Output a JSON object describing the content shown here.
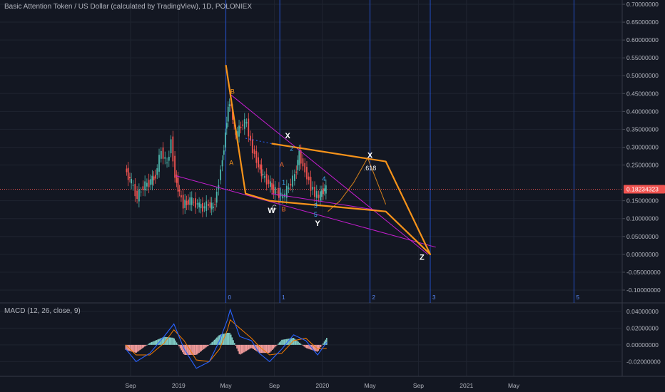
{
  "header": {
    "title": "Basic Attention Token / US Dollar (calculated by TradingView), 1D, POLONIEX"
  },
  "macd_header": {
    "label": "MACD (12, 26, close, 9)"
  },
  "colors": {
    "background": "#131722",
    "grid": "#1f2430",
    "candle_up": "#4db6ac",
    "candle_down": "#ef5350",
    "fib_time_line": "#2962ff",
    "pattern_line": "#f7931a",
    "trend_line": "#c71ed1",
    "price_line": "#ef5350",
    "macd_line": "#2962ff",
    "signal_line": "#f57c00",
    "hist_up": "#80cbc4",
    "hist_down": "#ef9a9a"
  },
  "chart_data": [
    {
      "type": "line",
      "title": "Basic Attention Token / US Dollar (calculated by TradingView), 1D, POLONIEX",
      "ylim": [
        -0.12,
        0.7
      ],
      "yticks": [
        "0.70000000",
        "0.65000000",
        "0.60000000",
        "0.55000000",
        "0.50000000",
        "0.45000000",
        "0.40000000",
        "0.35000000",
        "0.30000000",
        "0.25000000",
        "0.15000000",
        "0.10000000",
        "0.05000000",
        "0.00000000",
        "-0.05000000",
        "-0.10000000"
      ],
      "ytick_values": [
        0.7,
        0.65,
        0.6,
        0.55,
        0.5,
        0.45,
        0.4,
        0.35,
        0.3,
        0.25,
        0.15,
        0.1,
        0.05,
        0.0,
        -0.05,
        -0.1
      ],
      "current_price": 0.18234323,
      "current_price_label": "0.18234323",
      "xticks": [
        "Sep",
        "2019",
        "May",
        "Sep",
        "2020",
        "May",
        "Sep",
        "2021",
        "May"
      ],
      "xtick_dates": [
        "2018-09-01",
        "2019-01-01",
        "2019-05-01",
        "2019-09-01",
        "2020-01-01",
        "2020-05-01",
        "2020-09-01",
        "2021-01-01",
        "2021-05-01"
      ],
      "fib_time_zones": [
        "0",
        "1",
        "2",
        "3",
        "5"
      ],
      "fib_time_dates": [
        "2019-05-01",
        "2019-09-15",
        "2020-05-01",
        "2020-10-01",
        "2021-10-01"
      ],
      "price_series": [
        {
          "d": "2018-08-20",
          "v": 0.24
        },
        {
          "d": "2018-09-05",
          "v": 0.2
        },
        {
          "d": "2018-09-20",
          "v": 0.16
        },
        {
          "d": "2018-10-05",
          "v": 0.19
        },
        {
          "d": "2018-10-20",
          "v": 0.2
        },
        {
          "d": "2018-11-05",
          "v": 0.22
        },
        {
          "d": "2018-11-20",
          "v": 0.29
        },
        {
          "d": "2018-12-05",
          "v": 0.25
        },
        {
          "d": "2018-12-15",
          "v": 0.32
        },
        {
          "d": "2018-12-25",
          "v": 0.22
        },
        {
          "d": "2019-01-05",
          "v": 0.17
        },
        {
          "d": "2019-01-15",
          "v": 0.14
        },
        {
          "d": "2019-02-01",
          "v": 0.15
        },
        {
          "d": "2019-02-20",
          "v": 0.14
        },
        {
          "d": "2019-03-05",
          "v": 0.13
        },
        {
          "d": "2019-03-20",
          "v": 0.14
        },
        {
          "d": "2019-04-01",
          "v": 0.13
        },
        {
          "d": "2019-04-10",
          "v": 0.17
        },
        {
          "d": "2019-04-20",
          "v": 0.24
        },
        {
          "d": "2019-04-28",
          "v": 0.3
        },
        {
          "d": "2019-05-05",
          "v": 0.38
        },
        {
          "d": "2019-05-12",
          "v": 0.43
        },
        {
          "d": "2019-05-20",
          "v": 0.38
        },
        {
          "d": "2019-05-28",
          "v": 0.33
        },
        {
          "d": "2019-06-10",
          "v": 0.36
        },
        {
          "d": "2019-06-25",
          "v": 0.37
        },
        {
          "d": "2019-07-05",
          "v": 0.31
        },
        {
          "d": "2019-07-15",
          "v": 0.28
        },
        {
          "d": "2019-07-25",
          "v": 0.25
        },
        {
          "d": "2019-08-05",
          "v": 0.22
        },
        {
          "d": "2019-08-20",
          "v": 0.2
        },
        {
          "d": "2019-09-01",
          "v": 0.18
        },
        {
          "d": "2019-09-15",
          "v": 0.17
        },
        {
          "d": "2019-09-25",
          "v": 0.16
        },
        {
          "d": "2019-10-10",
          "v": 0.19
        },
        {
          "d": "2019-10-25",
          "v": 0.22
        },
        {
          "d": "2019-11-05",
          "v": 0.28
        },
        {
          "d": "2019-11-15",
          "v": 0.25
        },
        {
          "d": "2019-11-25",
          "v": 0.22
        },
        {
          "d": "2019-12-05",
          "v": 0.19
        },
        {
          "d": "2019-12-15",
          "v": 0.17
        },
        {
          "d": "2019-12-25",
          "v": 0.16
        },
        {
          "d": "2020-01-05",
          "v": 0.18
        },
        {
          "d": "2020-01-12",
          "v": 0.182
        }
      ],
      "pattern_polyline": [
        {
          "d": "2019-05-01",
          "v": 0.53
        },
        {
          "d": "2019-06-20",
          "v": 0.17
        },
        {
          "d": "2019-08-20",
          "v": 0.15
        },
        {
          "d": "2020-06-10",
          "v": 0.12
        },
        {
          "d": "2020-10-01",
          "v": 0.0
        },
        {
          "d": "2020-06-10",
          "v": 0.26
        },
        {
          "d": "2019-08-25",
          "v": 0.31
        }
      ],
      "trend_lines": [
        {
          "from": {
            "d": "2019-05-10",
            "v": 0.45
          },
          "to": {
            "d": "2020-09-25",
            "v": 0.0
          }
        },
        {
          "from": {
            "d": "2018-12-25",
            "v": 0.22
          },
          "to": {
            "d": "2020-10-15",
            "v": 0.02
          }
        },
        {
          "from": {
            "d": "2019-08-25",
            "v": 0.17
          },
          "to": {
            "d": "2020-06-10",
            "v": 0.12
          }
        }
      ],
      "projection_curve": [
        {
          "d": "2020-01-15",
          "v": 0.12
        },
        {
          "d": "2020-02-15",
          "v": 0.15
        },
        {
          "d": "2020-03-20",
          "v": 0.2
        },
        {
          "d": "2020-04-25",
          "v": 0.27
        },
        {
          "d": "2020-05-20",
          "v": 0.2
        },
        {
          "d": "2020-06-10",
          "v": 0.14
        }
      ],
      "wave_labels": [
        {
          "text": "B",
          "d": "2019-05-18",
          "v": 0.45,
          "color": "#f7931a"
        },
        {
          "text": "A",
          "d": "2019-05-15",
          "v": 0.25,
          "color": "#f7931a"
        },
        {
          "text": "C",
          "d": "2019-09-01",
          "v": 0.125,
          "color": "#c9c9c9"
        },
        {
          "text": "A",
          "d": "2019-09-20",
          "v": 0.245,
          "color": "#f06b2e"
        },
        {
          "text": "B",
          "d": "2019-09-25",
          "v": 0.12,
          "color": "#f06b2e"
        },
        {
          "text": "1",
          "d": "2019-09-25",
          "v": 0.195,
          "color": "#3fb0ff"
        },
        {
          "text": "2",
          "d": "2019-10-15",
          "v": 0.29,
          "color": "#3fb0ff"
        },
        {
          "text": "3",
          "d": "2019-12-15",
          "v": 0.13,
          "color": "#3fb0ff"
        },
        {
          "text": "4",
          "d": "2020-01-05",
          "v": 0.205,
          "color": "#3fb0ff"
        },
        {
          "text": "5",
          "d": "2019-12-15",
          "v": 0.105,
          "color": "#3fb0ff"
        },
        {
          "text": "X",
          "d": "2019-10-05",
          "v": 0.325,
          "color": "#ffffff"
        },
        {
          "text": "W",
          "d": "2019-08-25",
          "v": 0.115,
          "color": "#ffffff"
        },
        {
          "text": "Y",
          "d": "2019-12-20",
          "v": 0.08,
          "color": "#ffffff"
        },
        {
          "text": "X",
          "d": "2020-05-01",
          "v": 0.27,
          "color": "#ffffff"
        },
        {
          "text": ".618",
          "d": "2020-05-01",
          "v": 0.235,
          "color": "#ffffff"
        },
        {
          "text": "Z",
          "d": "2020-09-10",
          "v": -0.015,
          "color": "#ffffff"
        }
      ]
    },
    {
      "type": "line",
      "title": "MACD (12, 26, close, 9)",
      "ylim": [
        -0.035,
        0.045
      ],
      "yticks": [
        "0.04000000",
        "0.02000000",
        "0.00000000",
        "-0.02000000"
      ],
      "ytick_values": [
        0.04,
        0.02,
        0.0,
        -0.02
      ],
      "macd": [
        {
          "d": "2018-08-20",
          "v": -0.005
        },
        {
          "d": "2018-09-15",
          "v": -0.02
        },
        {
          "d": "2018-10-20",
          "v": -0.01
        },
        {
          "d": "2018-11-25",
          "v": 0.01
        },
        {
          "d": "2018-12-20",
          "v": 0.025
        },
        {
          "d": "2019-01-15",
          "v": -0.005
        },
        {
          "d": "2019-02-15",
          "v": -0.028
        },
        {
          "d": "2019-03-20",
          "v": -0.02
        },
        {
          "d": "2019-04-15",
          "v": 0.005
        },
        {
          "d": "2019-05-05",
          "v": 0.03
        },
        {
          "d": "2019-05-12",
          "v": 0.042
        },
        {
          "d": "2019-06-05",
          "v": 0.01
        },
        {
          "d": "2019-07-05",
          "v": 0.005
        },
        {
          "d": "2019-07-25",
          "v": -0.01
        },
        {
          "d": "2019-08-20",
          "v": -0.02
        },
        {
          "d": "2019-09-20",
          "v": -0.005
        },
        {
          "d": "2019-10-20",
          "v": 0.012
        },
        {
          "d": "2019-11-20",
          "v": 0.005
        },
        {
          "d": "2019-12-20",
          "v": -0.012
        },
        {
          "d": "2020-01-12",
          "v": 0.003
        }
      ],
      "signal": [
        {
          "d": "2018-08-20",
          "v": 0.0
        },
        {
          "d": "2018-09-15",
          "v": -0.012
        },
        {
          "d": "2018-10-20",
          "v": -0.012
        },
        {
          "d": "2018-11-25",
          "v": 0.002
        },
        {
          "d": "2018-12-20",
          "v": 0.018
        },
        {
          "d": "2019-01-15",
          "v": 0.005
        },
        {
          "d": "2019-02-15",
          "v": -0.018
        },
        {
          "d": "2019-03-20",
          "v": -0.02
        },
        {
          "d": "2019-04-15",
          "v": -0.005
        },
        {
          "d": "2019-05-05",
          "v": 0.018
        },
        {
          "d": "2019-05-12",
          "v": 0.03
        },
        {
          "d": "2019-06-05",
          "v": 0.02
        },
        {
          "d": "2019-07-05",
          "v": 0.008
        },
        {
          "d": "2019-07-25",
          "v": -0.002
        },
        {
          "d": "2019-08-20",
          "v": -0.012
        },
        {
          "d": "2019-09-20",
          "v": -0.01
        },
        {
          "d": "2019-10-20",
          "v": 0.005
        },
        {
          "d": "2019-11-20",
          "v": 0.008
        },
        {
          "d": "2019-12-20",
          "v": -0.005
        },
        {
          "d": "2020-01-12",
          "v": -0.004
        }
      ]
    }
  ]
}
